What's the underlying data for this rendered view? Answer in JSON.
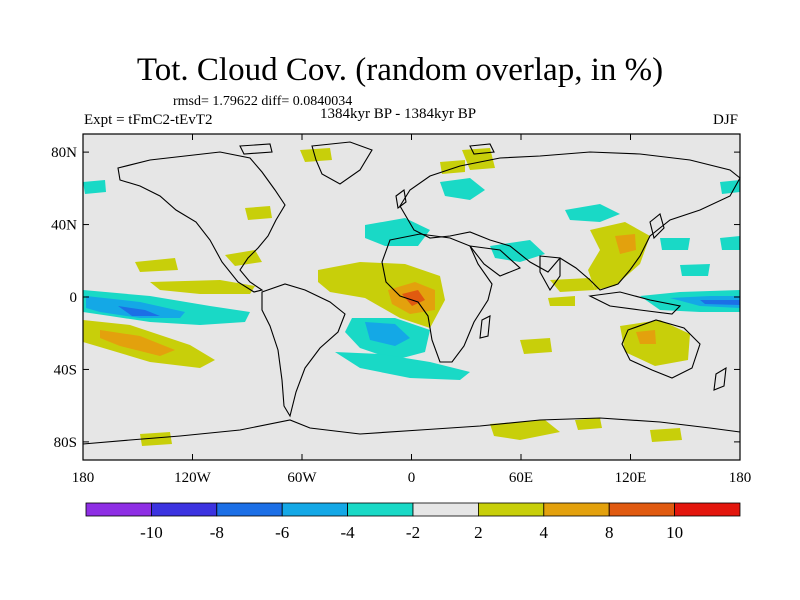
{
  "title": "Tot. Cloud Cov. (random overlap, in %)",
  "stats": "rmsd= 1.79622  diff= 0.0840034",
  "period": "1384kyr BP - 1384kyr BP",
  "experiment": "Expt = tFmC2-tEvT2",
  "season": "DJF",
  "lat_labels": [
    "80N",
    "40N",
    "0",
    "40S",
    "80S"
  ],
  "lon_labels": [
    "180",
    "120W",
    "60W",
    "0",
    "60E",
    "120E",
    "180"
  ],
  "colorbar": {
    "labels": [
      "-10",
      "-8",
      "-6",
      "-4",
      "-2",
      "2",
      "4",
      "8",
      "10"
    ],
    "colors": [
      "#8e2ee4",
      "#3c33e0",
      "#1c6fe6",
      "#14a8e6",
      "#19d9c6",
      "#e6e6e6",
      "#c8cf0a",
      "#e3a10d",
      "#e05a10",
      "#e3160d"
    ]
  },
  "legend_colors": {
    "neg_strong": "#1c6fe6",
    "neg_mid": "#14a8e6",
    "neg_weak": "#19d9c6",
    "neutral": "#e6e6e6",
    "pos_weak": "#c8cf0a",
    "pos_mid": "#e3a10d",
    "pos_strong": "#e05a10"
  }
}
